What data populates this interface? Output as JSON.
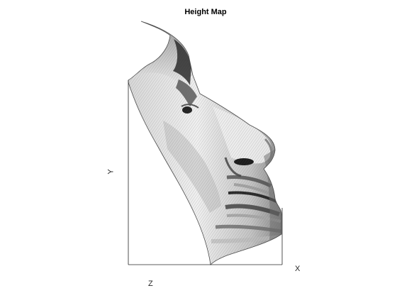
{
  "chart_data": {
    "type": "surface",
    "title": "Height Map",
    "xlabel": "X",
    "ylabel": "Y",
    "zlabel": "Z",
    "colormap": "gray",
    "grid": false,
    "axis_ticks": false,
    "colors": {
      "axis": "#262626",
      "background": "#ffffff",
      "mesh_dark": "#1a1a1a",
      "mesh_light": "#f2f2f2"
    }
  }
}
